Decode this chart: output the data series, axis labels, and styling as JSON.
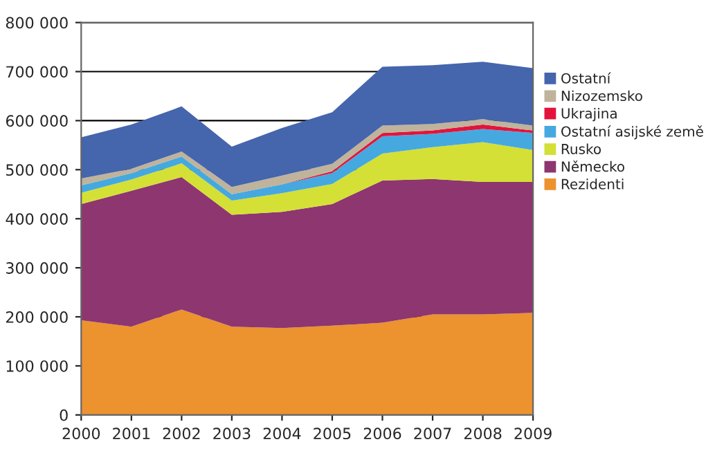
{
  "chart_data": {
    "type": "area",
    "stacked": true,
    "x": [
      2000,
      2001,
      2002,
      2003,
      2004,
      2005,
      2006,
      2007,
      2008,
      2009
    ],
    "series": [
      {
        "name": "Rezidenti",
        "color": "#ec922f",
        "values": [
          193000,
          180000,
          215000,
          180000,
          177000,
          182000,
          188000,
          205000,
          205000,
          208000
        ]
      },
      {
        "name": "Německo",
        "color": "#8e3670",
        "values": [
          237000,
          277000,
          270000,
          228000,
          237000,
          248000,
          290000,
          276000,
          270000,
          267000
        ]
      },
      {
        "name": "Rusko",
        "color": "#d4e035",
        "values": [
          23000,
          23000,
          28000,
          29000,
          38000,
          41000,
          55000,
          65000,
          81000,
          65000
        ]
      },
      {
        "name": "Ostatní asijské země",
        "color": "#45a9e0",
        "values": [
          15000,
          13000,
          14000,
          13000,
          18000,
          22000,
          35000,
          27000,
          27000,
          35000
        ]
      },
      {
        "name": "Ukrajina",
        "color": "#e3143c",
        "values": [
          0,
          0,
          0,
          0,
          0,
          4000,
          7000,
          7000,
          9000,
          5000
        ]
      },
      {
        "name": "Nizozemsko",
        "color": "#bfb39c",
        "values": [
          14000,
          9000,
          10000,
          15000,
          18000,
          15000,
          15000,
          13000,
          11000,
          10000
        ]
      },
      {
        "name": "Ostatní",
        "color": "#4565ad",
        "values": [
          84000,
          90000,
          92000,
          82000,
          97000,
          105000,
          120000,
          120000,
          117000,
          117000
        ]
      }
    ],
    "xlim": [
      2000,
      2009
    ],
    "xticks": [
      2000,
      2001,
      2002,
      2003,
      2004,
      2005,
      2006,
      2007,
      2008,
      2009
    ],
    "ylim": [
      0,
      800000
    ],
    "yticks": [
      0,
      {
        "value": 100000,
        "label": "100 000"
      },
      {
        "value": 200000,
        "label": "200 000"
      },
      {
        "value": 300000,
        "label": "300 000"
      },
      {
        "value": 400000,
        "label": "400 000"
      },
      {
        "value": 500000,
        "label": "500 000"
      },
      {
        "value": 600000,
        "label": "600 000"
      },
      {
        "value": 700000,
        "label": "700 000"
      },
      {
        "value": 800000,
        "label": "800 000"
      }
    ],
    "grid": "y",
    "legend": "right"
  }
}
